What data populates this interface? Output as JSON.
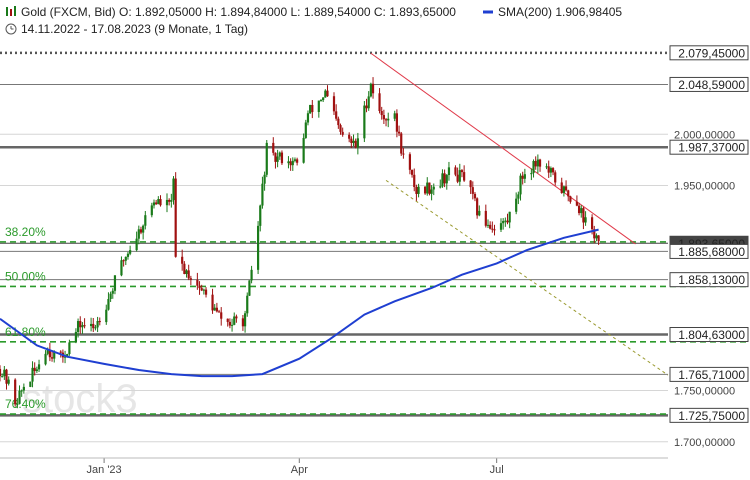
{
  "header": {
    "line1": "Gold (FXCM, Bid)  O: 1.892,05000  H: 1.894,84000  L: 1.889,54000  C: 1.893,65000",
    "sma_label": "SMA(200)  1.906,98405",
    "line2": "14.11.2022 - 17.08.2023  (9 Monate, 1 Tag)"
  },
  "watermark": "stock3",
  "colors": {
    "candle_up": "#1a7a1a",
    "candle_down": "#a01010",
    "sma": "#1f3fd1",
    "fib": "#2a9a2a",
    "resistance": "#666666",
    "trendline": "#e03a4a",
    "channel": "#9a9a30"
  },
  "chart_data": {
    "type": "candlestick",
    "instrument": "Gold (FXCM, Bid)",
    "period": "14.11.2022 - 17.08.2023",
    "ohlc_last": {
      "open": 1892.05,
      "high": 1894.84,
      "low": 1889.54,
      "close": 1893.65
    },
    "ylim": [
      1690,
      2090
    ],
    "xlim": [
      "2022-11-14",
      "2023-09-18"
    ],
    "y_ticks": [
      {
        "value": 2000,
        "label": "2.000,00000"
      },
      {
        "value": 1950,
        "label": "1.950,00000"
      },
      {
        "value": 1750,
        "label": "1.750,00000"
      },
      {
        "value": 1700,
        "label": "1.700,00000"
      }
    ],
    "x_ticks": [
      {
        "date": "2023-01-01",
        "label": "Jan '23"
      },
      {
        "date": "2023-04-01",
        "label": "Apr"
      },
      {
        "date": "2023-07-01",
        "label": "Jul"
      }
    ],
    "price_path": [
      [
        "2022-11-14",
        1771
      ],
      [
        "2022-11-17",
        1760
      ],
      [
        "2022-11-21",
        1740
      ],
      [
        "2022-11-23",
        1745
      ],
      [
        "2022-11-25",
        1754
      ],
      [
        "2022-11-30",
        1768
      ],
      [
        "2022-12-05",
        1792
      ],
      [
        "2022-12-12",
        1780
      ],
      [
        "2022-12-16",
        1795
      ],
      [
        "2022-12-21",
        1815
      ],
      [
        "2022-12-27",
        1810
      ],
      [
        "2023-01-03",
        1840
      ],
      [
        "2023-01-10",
        1878
      ],
      [
        "2023-01-17",
        1905
      ],
      [
        "2023-01-24",
        1935
      ],
      [
        "2023-01-31",
        1930
      ],
      [
        "2023-02-02",
        1950
      ],
      [
        "2023-02-03",
        1878
      ],
      [
        "2023-02-10",
        1862
      ],
      [
        "2023-02-17",
        1842
      ],
      [
        "2023-02-23",
        1822
      ],
      [
        "2023-02-28",
        1815
      ],
      [
        "2023-03-07",
        1820
      ],
      [
        "2023-03-10",
        1868
      ],
      [
        "2023-03-13",
        1910
      ],
      [
        "2023-03-17",
        1985
      ],
      [
        "2023-03-20",
        1975
      ],
      [
        "2023-03-24",
        1978
      ],
      [
        "2023-03-31",
        1970
      ],
      [
        "2023-04-05",
        2020
      ],
      [
        "2023-04-13",
        2040
      ],
      [
        "2023-04-20",
        2000
      ],
      [
        "2023-04-27",
        1988
      ],
      [
        "2023-05-04",
        2050
      ],
      [
        "2023-05-08",
        2020
      ],
      [
        "2023-05-15",
        2015
      ],
      [
        "2023-05-19",
        1978
      ],
      [
        "2023-05-25",
        1945
      ],
      [
        "2023-06-02",
        1950
      ],
      [
        "2023-06-09",
        1962
      ],
      [
        "2023-06-16",
        1958
      ],
      [
        "2023-06-23",
        1920
      ],
      [
        "2023-06-29",
        1910
      ],
      [
        "2023-07-06",
        1915
      ],
      [
        "2023-07-13",
        1960
      ],
      [
        "2023-07-20",
        1975
      ],
      [
        "2023-07-27",
        1958
      ],
      [
        "2023-08-01",
        1944
      ],
      [
        "2023-08-07",
        1934
      ],
      [
        "2023-08-11",
        1914
      ],
      [
        "2023-08-16",
        1900
      ],
      [
        "2023-08-17",
        1893
      ]
    ],
    "sma": {
      "name": "SMA(200)",
      "last": 1906.98405,
      "points": [
        [
          "2022-11-14",
          1820
        ],
        [
          "2022-12-01",
          1794
        ],
        [
          "2022-12-15",
          1783
        ],
        [
          "2023-01-01",
          1776
        ],
        [
          "2023-01-17",
          1770
        ],
        [
          "2023-02-01",
          1766
        ],
        [
          "2023-02-15",
          1764
        ],
        [
          "2023-03-01",
          1764
        ],
        [
          "2023-03-15",
          1766
        ],
        [
          "2023-04-01",
          1781
        ],
        [
          "2023-04-15",
          1800
        ],
        [
          "2023-05-01",
          1824
        ],
        [
          "2023-05-15",
          1837
        ],
        [
          "2023-06-01",
          1850
        ],
        [
          "2023-06-15",
          1863
        ],
        [
          "2023-07-01",
          1874
        ],
        [
          "2023-07-15",
          1887
        ],
        [
          "2023-08-01",
          1899
        ],
        [
          "2023-08-17",
          1907
        ]
      ]
    },
    "horizontal_levels": [
      {
        "value": 2079.45,
        "label": "2.079,45000",
        "style": "dotted"
      },
      {
        "value": 2048.59,
        "label": "2.048,59000",
        "style": "thin"
      },
      {
        "value": 1987.37,
        "label": "1.987,37000",
        "style": "thick"
      },
      {
        "value": 1893.65,
        "label": "1.893,65000",
        "style": "current"
      },
      {
        "value": 1885.68,
        "label": "1.885,68000",
        "style": "thin"
      },
      {
        "value": 1858.13,
        "label": "1.858,13000",
        "style": "thin"
      },
      {
        "value": 1804.63,
        "label": "1.804,63000",
        "style": "thick"
      },
      {
        "value": 1765.71,
        "label": "1.765,71000",
        "style": "thin"
      },
      {
        "value": 1725.75,
        "label": "1.725,75000",
        "style": "thick"
      }
    ],
    "fibonacci": [
      {
        "label": "38.20%",
        "value": 1895
      },
      {
        "label": "50.00%",
        "value": 1851.5
      },
      {
        "label": "61.80%",
        "value": 1797.5
      },
      {
        "label": "76.40%",
        "value": 1727
      }
    ],
    "trendlines": [
      {
        "kind": "resistance",
        "from": [
          "2023-05-04",
          2079
        ],
        "to": [
          "2023-09-03",
          1893
        ]
      },
      {
        "kind": "channel",
        "from": [
          "2023-05-11",
          1955
        ],
        "to": [
          "2023-09-18",
          1765
        ]
      }
    ]
  }
}
